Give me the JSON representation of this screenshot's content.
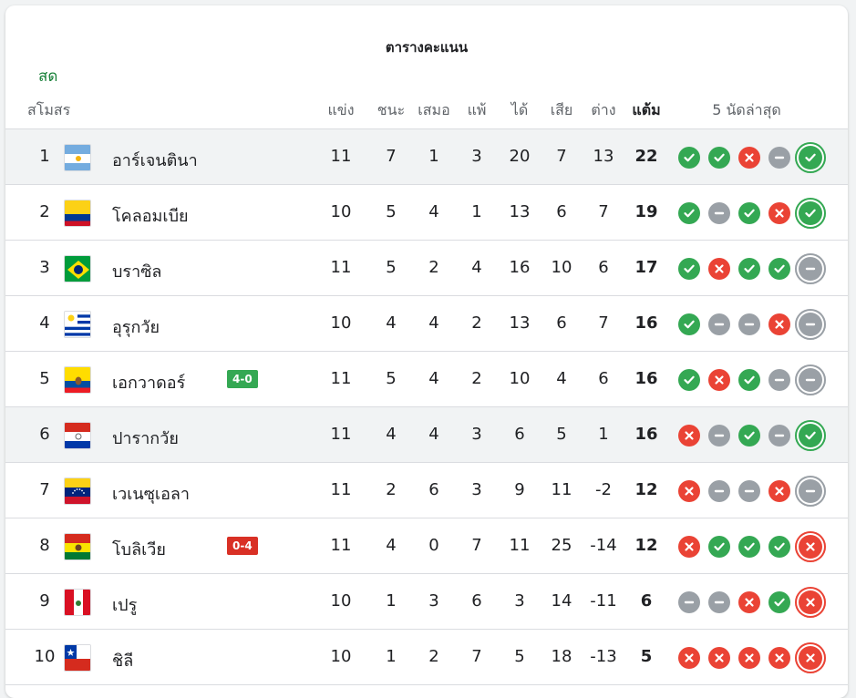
{
  "title": "ตารางคะแนน",
  "live_label": "สด",
  "headers": {
    "club": "สโมสร",
    "played": "แข่ง",
    "won": "ชนะ",
    "drawn": "เสมอ",
    "lost": "แพ้",
    "gf": "ได้",
    "ga": "เสีย",
    "gd": "ต่าง",
    "pts": "แต้ม",
    "form": "5 นัดล่าสุด"
  },
  "colors": {
    "win": "#34a853",
    "loss": "#ea4335",
    "draw": "#9aa0a6",
    "live": "#188038"
  },
  "rows": [
    {
      "rank": "1",
      "team": "อาร์เจนตินา",
      "flag": "argentina-flag-icon",
      "badge": "",
      "played": "11",
      "won": "7",
      "drawn": "1",
      "lost": "3",
      "gf": "20",
      "ga": "7",
      "gd": "13",
      "pts": "22",
      "form": [
        "W",
        "W",
        "L",
        "D",
        "W"
      ],
      "highlight": true
    },
    {
      "rank": "2",
      "team": "โคลอมเบีย",
      "flag": "colombia-flag-icon",
      "badge": "",
      "played": "10",
      "won": "5",
      "drawn": "4",
      "lost": "1",
      "gf": "13",
      "ga": "6",
      "gd": "7",
      "pts": "19",
      "form": [
        "W",
        "D",
        "W",
        "L",
        "W"
      ],
      "highlight": false
    },
    {
      "rank": "3",
      "team": "บราซิล",
      "flag": "brazil-flag-icon",
      "badge": "",
      "played": "11",
      "won": "5",
      "drawn": "2",
      "lost": "4",
      "gf": "16",
      "ga": "10",
      "gd": "6",
      "pts": "17",
      "form": [
        "W",
        "L",
        "W",
        "W",
        "D"
      ],
      "highlight": false
    },
    {
      "rank": "4",
      "team": "อุรุกวัย",
      "flag": "uruguay-flag-icon",
      "badge": "",
      "played": "10",
      "won": "4",
      "drawn": "4",
      "lost": "2",
      "gf": "13",
      "ga": "6",
      "gd": "7",
      "pts": "16",
      "form": [
        "W",
        "D",
        "D",
        "L",
        "D"
      ],
      "highlight": false
    },
    {
      "rank": "5",
      "team": "เอกวาดอร์",
      "flag": "ecuador-flag-icon",
      "badge": "4-0",
      "badge_color": "g",
      "played": "11",
      "won": "5",
      "drawn": "4",
      "lost": "2",
      "gf": "10",
      "ga": "4",
      "gd": "6",
      "pts": "16",
      "form": [
        "W",
        "L",
        "W",
        "D",
        "D"
      ],
      "highlight": false
    },
    {
      "rank": "6",
      "team": "ปารากวัย",
      "flag": "paraguay-flag-icon",
      "badge": "",
      "played": "11",
      "won": "4",
      "drawn": "4",
      "lost": "3",
      "gf": "6",
      "ga": "5",
      "gd": "1",
      "pts": "16",
      "form": [
        "L",
        "D",
        "W",
        "D",
        "W"
      ],
      "highlight": true
    },
    {
      "rank": "7",
      "team": "เวเนซุเอลา",
      "flag": "venezuela-flag-icon",
      "badge": "",
      "played": "11",
      "won": "2",
      "drawn": "6",
      "lost": "3",
      "gf": "9",
      "ga": "11",
      "gd": "-2",
      "pts": "12",
      "form": [
        "L",
        "D",
        "D",
        "L",
        "D"
      ],
      "highlight": false
    },
    {
      "rank": "8",
      "team": "โบลิเวีย",
      "flag": "bolivia-flag-icon",
      "badge": "0-4",
      "badge_color": "r",
      "played": "11",
      "won": "4",
      "drawn": "0",
      "lost": "7",
      "gf": "11",
      "ga": "25",
      "gd": "-14",
      "pts": "12",
      "form": [
        "L",
        "W",
        "W",
        "W",
        "L"
      ],
      "highlight": false
    },
    {
      "rank": "9",
      "team": "เปรู",
      "flag": "peru-flag-icon",
      "badge": "",
      "played": "10",
      "won": "1",
      "drawn": "3",
      "lost": "6",
      "gf": "3",
      "ga": "14",
      "gd": "-11",
      "pts": "6",
      "form": [
        "D",
        "D",
        "L",
        "W",
        "L"
      ],
      "highlight": false
    },
    {
      "rank": "10",
      "team": "ชิลี",
      "flag": "chile-flag-icon",
      "badge": "",
      "played": "10",
      "won": "1",
      "drawn": "2",
      "lost": "7",
      "gf": "5",
      "ga": "18",
      "gd": "-13",
      "pts": "5",
      "form": [
        "L",
        "L",
        "L",
        "L",
        "L"
      ],
      "highlight": false
    }
  ]
}
